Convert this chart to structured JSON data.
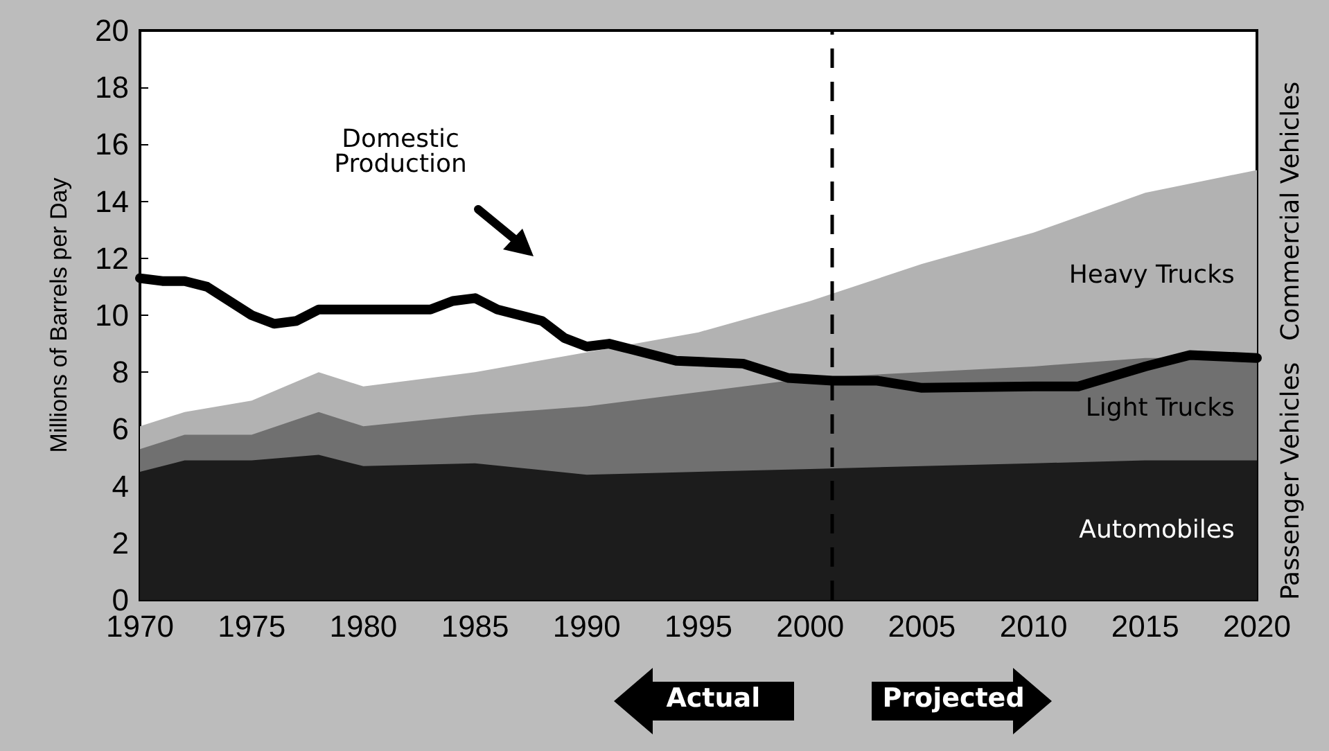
{
  "chart_data": {
    "type": "area",
    "stacked": true,
    "ylabel": "Millions of Barrels per Day",
    "xlim": [
      1970,
      2020
    ],
    "xticks": [
      1970,
      1975,
      1980,
      1985,
      1990,
      1995,
      2000,
      2005,
      2010,
      2015,
      2020
    ],
    "ylim": [
      0,
      20
    ],
    "yticks": [
      0,
      2,
      4,
      6,
      8,
      10,
      12,
      14,
      16,
      18,
      20
    ],
    "x": [
      1970,
      1972,
      1975,
      1978,
      1980,
      1985,
      1990,
      1995,
      2000,
      2005,
      2010,
      2015,
      2020
    ],
    "series": [
      {
        "name": "Automobiles",
        "color": "#1c1c1c",
        "values": [
          4.5,
          4.9,
          4.9,
          5.1,
          4.7,
          4.8,
          4.4,
          4.5,
          4.6,
          4.7,
          4.8,
          4.9,
          4.9
        ]
      },
      {
        "name": "Light Trucks",
        "color": "#707070",
        "values": [
          0.8,
          0.9,
          0.9,
          1.5,
          1.4,
          1.7,
          2.4,
          2.8,
          3.2,
          3.3,
          3.4,
          3.6,
          3.6
        ]
      },
      {
        "name": "Heavy Trucks",
        "color": "#b2b2b2",
        "values": [
          0.8,
          0.8,
          1.2,
          1.4,
          1.4,
          1.5,
          1.9,
          2.1,
          2.7,
          3.8,
          4.7,
          5.8,
          6.6
        ]
      },
      {
        "name": "Domestic Production",
        "type": "line",
        "color": "#000000",
        "line_style": "solid",
        "x": [
          1970,
          1971,
          1972,
          1973,
          1975,
          1976,
          1977,
          1978,
          1980,
          1983,
          1984,
          1985,
          1986,
          1988,
          1989,
          1990,
          1991,
          1992,
          1994,
          1997,
          1999,
          2000,
          2001,
          2003,
          2005,
          2010,
          2012,
          2015,
          2017,
          2020
        ],
        "values": [
          11.3,
          11.2,
          11.2,
          11.0,
          10.0,
          9.7,
          9.8,
          10.2,
          10.2,
          10.2,
          10.5,
          10.6,
          10.2,
          9.8,
          9.2,
          8.9,
          9.0,
          8.8,
          8.4,
          8.3,
          7.8,
          7.75,
          7.7,
          7.7,
          7.45,
          7.5,
          7.5,
          8.2,
          8.6,
          8.5
        ]
      }
    ],
    "ref_lines": [
      {
        "axis": "x",
        "value": 2001,
        "color": "#000000",
        "line_style": "dashed"
      }
    ],
    "annotations": [
      "Passenger Vehicles",
      "Commercial Vehicles",
      "Actual",
      "Projected"
    ],
    "grid": false,
    "legend": false
  }
}
